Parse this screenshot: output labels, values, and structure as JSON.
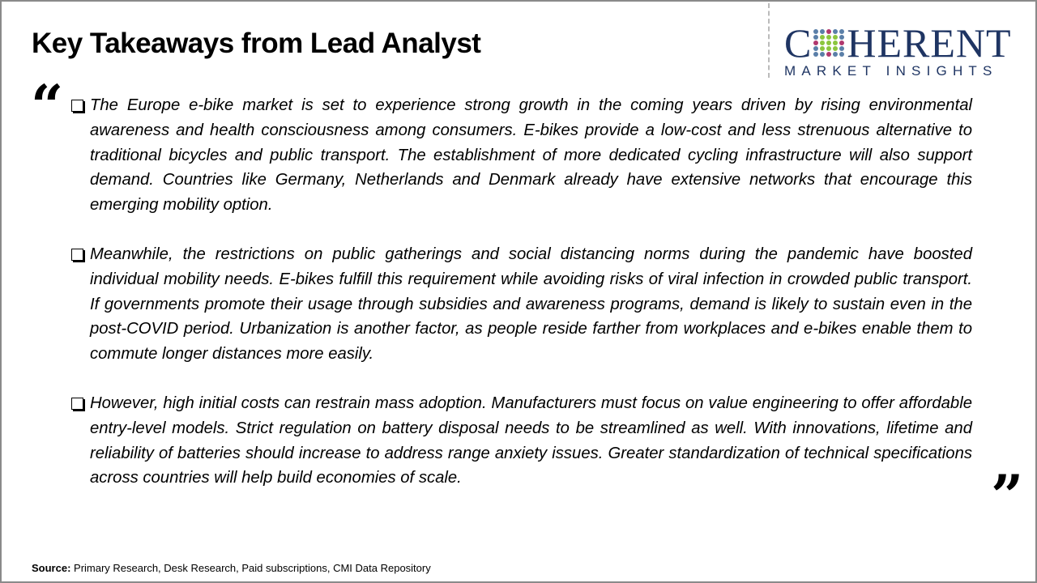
{
  "title": "Key Takeaways from Lead Analyst",
  "logo": {
    "top": "COHERENT",
    "bottom": "MARKET INSIGHTS",
    "color": "#1f3563"
  },
  "quote_open_icon": "quote-open",
  "quote_close_icon": "quote-close",
  "bullets": [
    {
      "text": "The Europe e-bike market is set to experience strong growth in the coming years driven by rising environmental awareness and health consciousness among consumers. E-bikes provide a low-cost and less strenuous alternative to traditional bicycles and public transport. The establishment of more dedicated cycling infrastructure will also support demand. Countries like Germany, Netherlands and Denmark already have extensive networks that encourage this emerging mobility option."
    },
    {
      "text": "Meanwhile, the restrictions on public gatherings and social distancing norms during the pandemic have boosted individual mobility needs. E-bikes fulfill this requirement while avoiding risks of viral infection in crowded public transport. If governments promote their usage through subsidies and awareness programs, demand is likely to sustain even in the post-COVID period. Urbanization is another factor, as people reside farther from workplaces and e-bikes enable them to commute longer distances more easily."
    },
    {
      "text": "However, high initial costs can restrain mass adoption. Manufacturers must focus on value engineering to offer affordable entry-level models. Strict regulation on battery disposal needs to be streamlined as well. With innovations, lifetime and reliability of batteries should increase to address range anxiety issues. Greater standardization of technical specifications across countries will help build economies of scale."
    }
  ],
  "source": {
    "label": "Source:",
    "text": " Primary Research, Desk Research, Paid subscriptions, CMI Data Repository"
  }
}
